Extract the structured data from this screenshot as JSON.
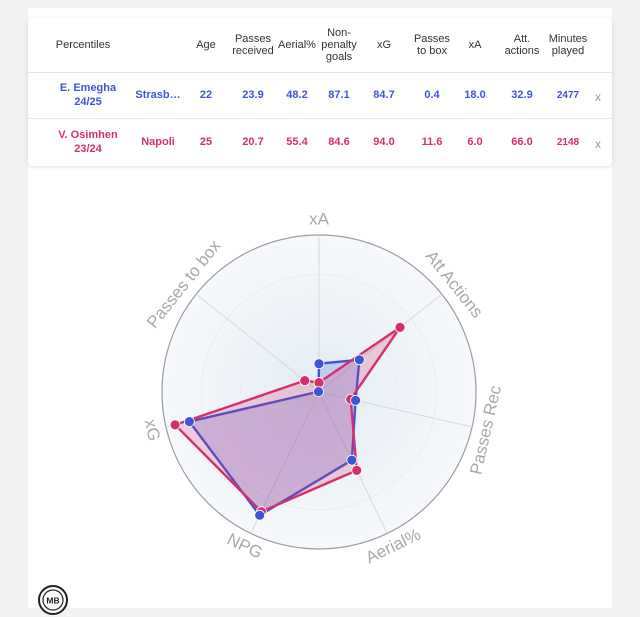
{
  "table": {
    "headers": [
      "Percentiles",
      "Age",
      "Passes received",
      "Aerial%",
      "Non-penalty goals",
      "xG",
      "Passes to box",
      "xA",
      "Att. actions",
      "Minutes played"
    ],
    "rows": [
      {
        "player": "E. Emegha",
        "season": "24/25",
        "team": "Strasb…",
        "age": "22",
        "passes_received": "23.9",
        "aerial": "48.2",
        "npg": "87.1",
        "xg": "84.7",
        "passes_box": "0.4",
        "xa": "18.0",
        "att_actions": "32.9",
        "minutes": "2477",
        "color": "#3e55d6",
        "remove": "x"
      },
      {
        "player": "V. Osimhen",
        "season": "23/24",
        "team": "Napoli",
        "age": "25",
        "passes_received": "20.7",
        "aerial": "55.4",
        "npg": "84.6",
        "xg": "94.0",
        "passes_box": "11.6",
        "xa": "6.0",
        "att_actions": "66.0",
        "minutes": "2148",
        "color": "#d4306b",
        "remove": "x"
      }
    ]
  },
  "chart_data": {
    "type": "radar",
    "axes": [
      "xA",
      "Att Actions",
      "Passes Rec",
      "Aerial%",
      "NPG",
      "xG",
      "Passes to box"
    ],
    "range": [
      0,
      100
    ],
    "series": [
      {
        "name": "E. Emegha",
        "color": "#3e55d6",
        "values": [
          18.0,
          32.9,
          23.9,
          48.2,
          87.1,
          84.7,
          0.4
        ]
      },
      {
        "name": "V. Osimhen",
        "color": "#d4306b",
        "values": [
          6.0,
          66.0,
          20.7,
          55.4,
          84.6,
          94.0,
          11.6
        ]
      }
    ]
  },
  "logo_text": "MB"
}
